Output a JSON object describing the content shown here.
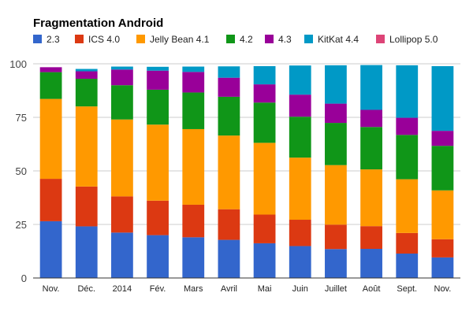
{
  "chart_data": {
    "type": "bar",
    "stacked": true,
    "title": "Fragmentation Android",
    "xlabel": "",
    "ylabel": "",
    "ylim": [
      0,
      100
    ],
    "yticks": [
      0,
      25,
      50,
      75,
      100
    ],
    "grid": true,
    "legend_position": "top",
    "categories": [
      "Nov.",
      "Déc.",
      "2014",
      "Fév.",
      "Mars",
      "Avril",
      "Mai",
      "Juin",
      "Juillet",
      "Août",
      "Sept.",
      "Nov."
    ],
    "series": [
      {
        "name": "2.3",
        "color": "#3366cc",
        "values": [
          26.5,
          24.1,
          21.2,
          20.0,
          19.0,
          17.8,
          16.2,
          14.9,
          13.5,
          13.6,
          11.4,
          9.6
        ]
      },
      {
        "name": "ICS 4.0",
        "color": "#dc3912",
        "values": [
          19.8,
          18.6,
          16.9,
          16.1,
          15.2,
          14.3,
          13.4,
          12.3,
          11.4,
          10.6,
          9.6,
          8.5
        ]
      },
      {
        "name": "Jelly Bean 4.1",
        "color": "#ff9900",
        "values": [
          37.3,
          37.4,
          35.9,
          35.5,
          35.3,
          34.4,
          33.5,
          29.0,
          27.8,
          26.5,
          25.1,
          22.8
        ]
      },
      {
        "name": "4.2",
        "color": "#109618",
        "values": [
          12.5,
          12.9,
          16.0,
          16.3,
          17.1,
          18.1,
          18.8,
          19.1,
          19.7,
          19.8,
          20.7,
          20.8
        ]
      },
      {
        "name": "4.3",
        "color": "#990099",
        "values": [
          2.3,
          3.5,
          7.3,
          8.9,
          9.6,
          8.9,
          8.5,
          10.3,
          9.0,
          8.0,
          8.0,
          7.0
        ]
      },
      {
        "name": "KitKat 4.4",
        "color": "#0099c6",
        "values": [
          0.0,
          1.1,
          1.4,
          1.8,
          2.5,
          5.3,
          8.5,
          13.6,
          17.9,
          20.9,
          24.5,
          30.2
        ]
      },
      {
        "name": "Lollipop 5.0",
        "color": "#dd4477",
        "values": [
          0,
          0,
          0,
          0,
          0,
          0,
          0,
          0,
          0,
          0,
          0,
          0
        ]
      }
    ]
  }
}
